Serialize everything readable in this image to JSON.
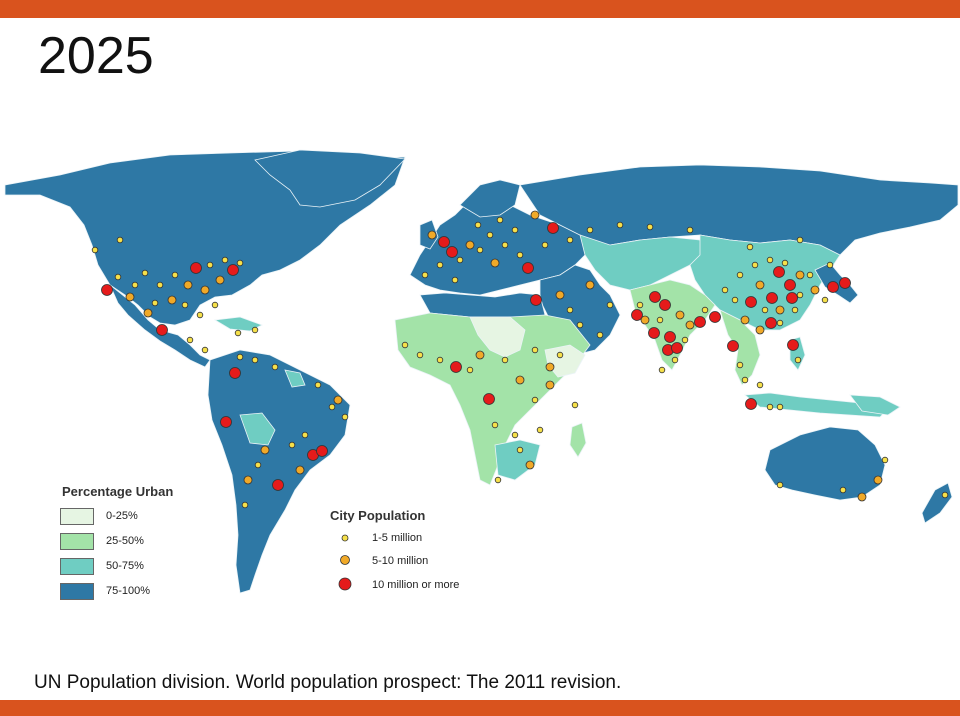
{
  "slide": {
    "title": "2025",
    "citation": "UN Population division. World population prospect: The 2011 revision."
  },
  "colors": {
    "accent_bar": "#d9531e",
    "ocean": "#ffffff",
    "urban_0_25": "#e6f5e3",
    "urban_25_50": "#a3e3a8",
    "urban_50_75": "#6fcdc2",
    "urban_75_100": "#2e78a5",
    "city_small": "#f6e04a",
    "city_medium": "#f0a928",
    "city_large": "#e51b1b"
  },
  "legend_urban": {
    "title": "Percentage Urban",
    "items": [
      {
        "label": "0-25%",
        "color": "#e6f5e3"
      },
      {
        "label": "25-50%",
        "color": "#a3e3a8"
      },
      {
        "label": "50-75%",
        "color": "#6fcdc2"
      },
      {
        "label": "75-100%",
        "color": "#2e78a5"
      }
    ]
  },
  "legend_city": {
    "title": "City Population",
    "items": [
      {
        "label": "1-5 million",
        "color": "#f6e04a",
        "size": "small"
      },
      {
        "label": "5-10 million",
        "color": "#f0a928",
        "size": "medium"
      },
      {
        "label": "10 million or more",
        "color": "#e51b1b",
        "size": "large"
      }
    ]
  }
}
